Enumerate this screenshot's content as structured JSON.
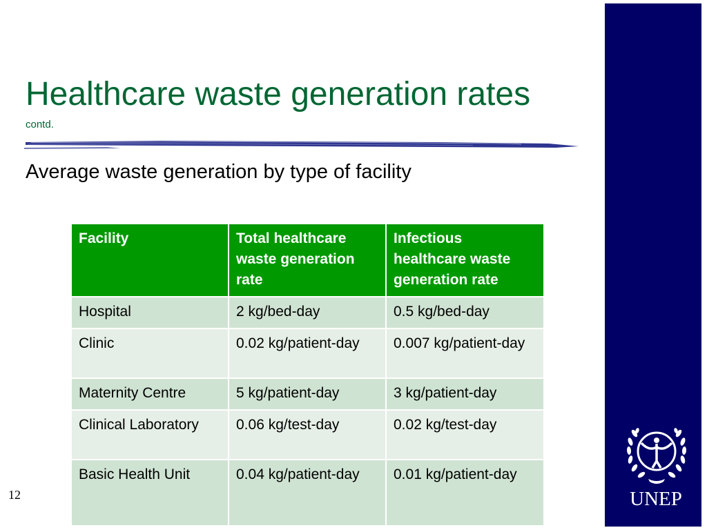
{
  "slide": {
    "title": "Healthcare waste generation rates",
    "title_note": "contd.",
    "heading": "Average waste generation by type of facility",
    "page_number": "12",
    "colors": {
      "title": "#006633",
      "header_bg": "#009900",
      "row_odd": "#cfe3d2",
      "row_even": "#e6efe7",
      "side_bar": "#000066"
    }
  },
  "table": {
    "headers": [
      "Facility",
      "Total healthcare waste generation rate",
      "Infectious healthcare waste generation rate"
    ],
    "rows": [
      [
        "Hospital",
        "2 kg/bed-day",
        "0.5 kg/bed-day"
      ],
      [
        "Clinic",
        "0.02 kg/patient-day",
        "0.007 kg/patient-day"
      ],
      [
        "Maternity Centre",
        "5 kg/patient-day",
        "3 kg/patient-day"
      ],
      [
        "Clinical Laboratory",
        "0.06 kg/test-day",
        "0.02 kg/test-day"
      ],
      [
        "Basic Health Unit",
        "0.04 kg/patient-day",
        "0.01 kg/patient-day"
      ]
    ]
  },
  "branding": {
    "logo_icon": "un-wreath-emblem-icon",
    "logo_text": "UNEP"
  }
}
